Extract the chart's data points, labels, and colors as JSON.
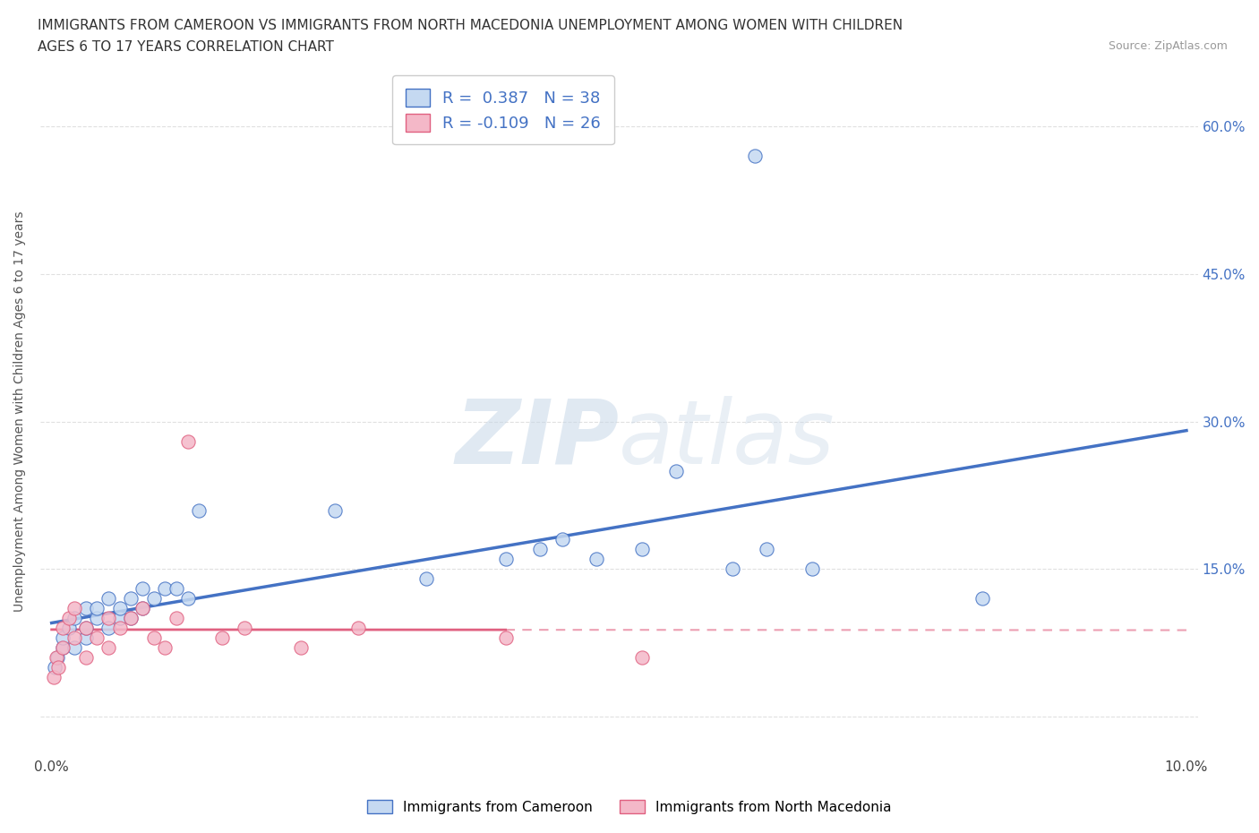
{
  "title_line1": "IMMIGRANTS FROM CAMEROON VS IMMIGRANTS FROM NORTH MACEDONIA UNEMPLOYMENT AMONG WOMEN WITH CHILDREN",
  "title_line2": "AGES 6 TO 17 YEARS CORRELATION CHART",
  "source": "Source: ZipAtlas.com",
  "ylabel": "Unemployment Among Women with Children Ages 6 to 17 years",
  "xlim": [
    -0.001,
    0.101
  ],
  "ylim": [
    -0.04,
    0.66
  ],
  "ytick_positions": [
    0.0,
    0.15,
    0.3,
    0.45,
    0.6
  ],
  "ytick_labels_right": [
    "",
    "15.0%",
    "30.0%",
    "45.0%",
    "60.0%"
  ],
  "xtick_positions": [
    0.0,
    0.02,
    0.04,
    0.06,
    0.08,
    0.1
  ],
  "xtick_labels": [
    "0.0%",
    "",
    "",
    "",
    "",
    "10.0%"
  ],
  "grid_color": "#e0e0e0",
  "background_color": "#ffffff",
  "cameroon_R": 0.387,
  "cameroon_N": 38,
  "macedonia_R": -0.109,
  "macedonia_N": 26,
  "cameroon_fill": "#c5d9f1",
  "cameroon_edge": "#4472c4",
  "macedonia_fill": "#f4b8c8",
  "macedonia_edge": "#e06080",
  "blue_label_color": "#4472c4",
  "cameroon_x": [
    0.0003,
    0.0005,
    0.001,
    0.001,
    0.0015,
    0.002,
    0.002,
    0.003,
    0.003,
    0.003,
    0.004,
    0.004,
    0.005,
    0.005,
    0.006,
    0.006,
    0.007,
    0.007,
    0.008,
    0.008,
    0.009,
    0.01,
    0.011,
    0.012,
    0.013,
    0.025,
    0.033,
    0.04,
    0.043,
    0.045,
    0.048,
    0.052,
    0.055,
    0.06,
    0.063,
    0.067,
    0.082,
    0.062
  ],
  "cameroon_y": [
    0.05,
    0.06,
    0.07,
    0.08,
    0.09,
    0.07,
    0.1,
    0.08,
    0.09,
    0.11,
    0.1,
    0.11,
    0.09,
    0.12,
    0.1,
    0.11,
    0.12,
    0.1,
    0.13,
    0.11,
    0.12,
    0.13,
    0.13,
    0.12,
    0.21,
    0.21,
    0.14,
    0.16,
    0.17,
    0.18,
    0.16,
    0.17,
    0.25,
    0.15,
    0.17,
    0.15,
    0.12,
    0.57
  ],
  "macedonia_x": [
    0.0002,
    0.0004,
    0.0006,
    0.001,
    0.001,
    0.0015,
    0.002,
    0.002,
    0.003,
    0.003,
    0.004,
    0.005,
    0.005,
    0.006,
    0.007,
    0.008,
    0.009,
    0.01,
    0.011,
    0.012,
    0.015,
    0.017,
    0.022,
    0.027,
    0.04,
    0.052
  ],
  "macedonia_y": [
    0.04,
    0.06,
    0.05,
    0.09,
    0.07,
    0.1,
    0.08,
    0.11,
    0.06,
    0.09,
    0.08,
    0.1,
    0.07,
    0.09,
    0.1,
    0.11,
    0.08,
    0.07,
    0.1,
    0.28,
    0.08,
    0.09,
    0.07,
    0.09,
    0.08,
    0.06
  ],
  "marker_size": 120
}
